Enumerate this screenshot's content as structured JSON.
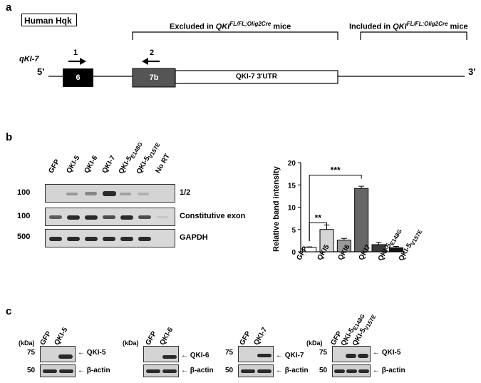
{
  "panel_a": {
    "letter": "a",
    "gene_label": "Human Hqk",
    "transcript": "qKI-7",
    "excluded_prefix": "Excluded in ",
    "excluded_gene": "QKI",
    "excluded_sup": "FL/FL;Olig2Cre",
    "excluded_suffix": " mice",
    "included_prefix": "Included in ",
    "included_gene": "QKI",
    "included_sup": "FL/FL;Olig2Cre",
    "included_suffix": " mice",
    "five_prime": "5'",
    "three_prime": "3'",
    "exon6": "6",
    "exon7b": "7b",
    "utr": "QKI-7 3'UTR",
    "primer1": "1",
    "primer2": "2"
  },
  "panel_b": {
    "letter": "b",
    "lanes": [
      "GFP",
      "QKI-5",
      "QKI-6",
      "QKI-7",
      "QKI-5",
      "QKI-5",
      "No RT"
    ],
    "lane_subs": [
      "",
      "",
      "",
      "",
      "E148G",
      "V157E",
      ""
    ],
    "gel_rows": [
      {
        "size": "100",
        "label": "1/2"
      },
      {
        "size": "100",
        "label": "Constitutive exon"
      },
      {
        "size": "500",
        "label": "GAPDH"
      }
    ]
  },
  "chart_data": {
    "type": "bar",
    "categories": [
      "GFP",
      "QKI5",
      "QKI6",
      "QKI7",
      "QKI-5E148G",
      "QKI-5V157E"
    ],
    "category_labels": [
      {
        "main": "GFP",
        "sub": ""
      },
      {
        "main": "QKI5",
        "sub": ""
      },
      {
        "main": "QKI6",
        "sub": ""
      },
      {
        "main": "QKI7",
        "sub": ""
      },
      {
        "main": "QKI-5",
        "sub": "E148G"
      },
      {
        "main": "QKI-5",
        "sub": "V157E"
      }
    ],
    "values": [
      1.0,
      5.0,
      2.6,
      14.2,
      1.6,
      0.9
    ],
    "errors": [
      0.1,
      1.0,
      0.4,
      0.5,
      0.5,
      0.3
    ],
    "colors": [
      "#ffffff",
      "#d6d6d6",
      "#9a9a9a",
      "#666666",
      "#3a3a3a",
      "#111111"
    ],
    "ylabel": "Relative band intensity",
    "ylim": [
      0,
      20
    ],
    "yticks": [
      0,
      5,
      10,
      15,
      20
    ],
    "significance": [
      {
        "from": 0,
        "to": 1,
        "label": "**"
      },
      {
        "from": 0,
        "to": 3,
        "label": "***"
      }
    ]
  },
  "panel_c": {
    "letter": "c",
    "kda": "(kDa)",
    "marker_top": "75",
    "marker_bottom": "50",
    "actin": "β-actin",
    "blots": [
      {
        "lanes": [
          "GFP",
          "QKI-5"
        ],
        "lane_subs": [
          "",
          ""
        ],
        "target": "QKI-5"
      },
      {
        "lanes": [
          "GFP",
          "QKI-6"
        ],
        "lane_subs": [
          "",
          ""
        ],
        "target": "QKI-6"
      },
      {
        "lanes": [
          "GFP",
          "QKI-7"
        ],
        "lane_subs": [
          "",
          ""
        ],
        "target": "QKI-7"
      },
      {
        "lanes": [
          "GFP",
          "QKI-5",
          "QKI-5"
        ],
        "lane_subs": [
          "",
          "E148G",
          "V157E"
        ],
        "target": "QKI-5"
      }
    ]
  }
}
